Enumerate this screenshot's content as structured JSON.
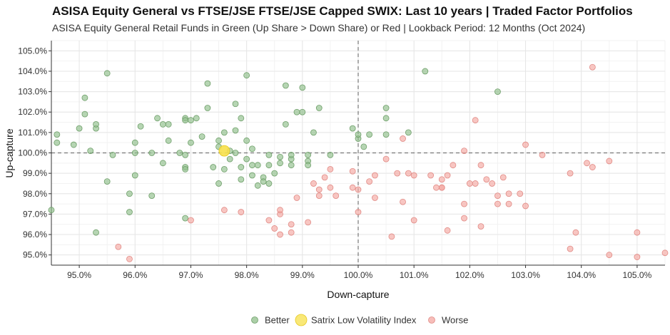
{
  "chart_data": {
    "type": "scatter",
    "title": "ASISA Equity General vs FTSE/JSE FTSE/JSE Capped SWIX: Last 10 years | Traded Factor Portfolios",
    "subtitle": "ASISA Equity General Retail Funds in Green (Up Share > Down Share) or Red | Lookback Period: 12 Months (Oct 2024)",
    "xlabel": "Down-capture",
    "ylabel": "Up-capture",
    "xlim": [
      94.5,
      105.5
    ],
    "ylim": [
      94.5,
      105.5
    ],
    "xticks": [
      "95.0%",
      "96.0%",
      "97.0%",
      "98.0%",
      "99.0%",
      "100.0%",
      "101.0%",
      "102.0%",
      "103.0%",
      "104.0%",
      "105.0%"
    ],
    "yticks": [
      "95.0%",
      "96.0%",
      "97.0%",
      "98.0%",
      "99.0%",
      "100.0%",
      "101.0%",
      "102.0%",
      "103.0%",
      "104.0%",
      "105.0%"
    ],
    "xtick_values": [
      95,
      96,
      97,
      98,
      99,
      100,
      101,
      102,
      103,
      104,
      105
    ],
    "ytick_values": [
      95,
      96,
      97,
      98,
      99,
      100,
      101,
      102,
      103,
      104,
      105
    ],
    "reference_lines": {
      "x": 100,
      "y": 100
    },
    "colors": {
      "better": "#8fbf8a",
      "worse": "#f4a7a2",
      "highlight": "#f7e04a",
      "better_edge": "#6e9e69",
      "worse_edge": "#e08a85",
      "highlight_edge": "#e6c820"
    },
    "legend": [
      "Better",
      "Satrix Low Volatility Index",
      "Worse"
    ],
    "series": [
      {
        "name": "Better",
        "points": [
          [
            94.5,
            97.2
          ],
          [
            94.6,
            100.5
          ],
          [
            94.6,
            100.9
          ],
          [
            94.9,
            100.4
          ],
          [
            95.0,
            101.2
          ],
          [
            95.1,
            102.7
          ],
          [
            95.1,
            101.9
          ],
          [
            95.2,
            100.1
          ],
          [
            95.3,
            101.2
          ],
          [
            95.3,
            101.4
          ],
          [
            95.3,
            96.1
          ],
          [
            95.5,
            98.6
          ],
          [
            95.5,
            103.9
          ],
          [
            95.6,
            99.9
          ],
          [
            95.9,
            98.0
          ],
          [
            95.9,
            97.1
          ],
          [
            96.0,
            100.0
          ],
          [
            96.0,
            98.9
          ],
          [
            96.0,
            100.5
          ],
          [
            96.1,
            101.3
          ],
          [
            96.3,
            97.9
          ],
          [
            96.3,
            100.0
          ],
          [
            96.4,
            101.7
          ],
          [
            96.5,
            99.5
          ],
          [
            96.5,
            101.4
          ],
          [
            96.6,
            101.4
          ],
          [
            96.6,
            100.6
          ],
          [
            96.8,
            100.0
          ],
          [
            96.9,
            99.9
          ],
          [
            96.9,
            101.7
          ],
          [
            96.9,
            101.6
          ],
          [
            96.9,
            99.3
          ],
          [
            96.9,
            96.8
          ],
          [
            96.9,
            99.2
          ],
          [
            97.0,
            101.6
          ],
          [
            97.0,
            100.5
          ],
          [
            97.1,
            101.7
          ],
          [
            97.2,
            100.8
          ],
          [
            97.3,
            102.2
          ],
          [
            97.3,
            103.4
          ],
          [
            97.4,
            99.3
          ],
          [
            97.5,
            100.6
          ],
          [
            97.5,
            100.3
          ],
          [
            97.5,
            98.5
          ],
          [
            97.6,
            101.0
          ],
          [
            97.6,
            99.2
          ],
          [
            97.7,
            100.1
          ],
          [
            97.7,
            99.7
          ],
          [
            97.8,
            102.4
          ],
          [
            97.8,
            101.1
          ],
          [
            97.8,
            100.0
          ],
          [
            97.9,
            98.7
          ],
          [
            97.9,
            99.3
          ],
          [
            97.9,
            101.7
          ],
          [
            98.0,
            103.8
          ],
          [
            98.0,
            99.7
          ],
          [
            98.0,
            100.6
          ],
          [
            98.1,
            100.2
          ],
          [
            98.1,
            98.9
          ],
          [
            98.1,
            99.4
          ],
          [
            98.2,
            98.4
          ],
          [
            98.2,
            99.4
          ],
          [
            98.3,
            98.8
          ],
          [
            98.3,
            98.6
          ],
          [
            98.4,
            99.9
          ],
          [
            98.4,
            99.4
          ],
          [
            98.4,
            98.5
          ],
          [
            98.5,
            99.0
          ],
          [
            98.6,
            99.5
          ],
          [
            98.6,
            99.8
          ],
          [
            98.7,
            101.4
          ],
          [
            98.7,
            103.3
          ],
          [
            98.8,
            99.7
          ],
          [
            98.8,
            99.4
          ],
          [
            98.8,
            99.9
          ],
          [
            98.9,
            102.0
          ],
          [
            99.0,
            102.0
          ],
          [
            99.0,
            103.2
          ],
          [
            99.1,
            99.9
          ],
          [
            99.1,
            99.6
          ],
          [
            99.1,
            99.4
          ],
          [
            99.2,
            101.0
          ],
          [
            99.3,
            102.2
          ],
          [
            99.5,
            99.9
          ],
          [
            99.9,
            101.2
          ],
          [
            100.0,
            100.7
          ],
          [
            100.0,
            100.9
          ],
          [
            100.1,
            100.3
          ],
          [
            100.2,
            100.9
          ],
          [
            100.5,
            101.7
          ],
          [
            100.5,
            102.2
          ],
          [
            100.5,
            100.9
          ],
          [
            100.9,
            101.0
          ],
          [
            101.2,
            104.0
          ],
          [
            102.5,
            103.0
          ]
        ]
      },
      {
        "name": "Satrix Low Volatility Index",
        "points": [
          [
            97.6,
            100.1
          ]
        ]
      },
      {
        "name": "Worse",
        "points": [
          [
            95.7,
            95.4
          ],
          [
            95.9,
            94.8
          ],
          [
            97.0,
            96.7
          ],
          [
            97.6,
            97.2
          ],
          [
            97.9,
            97.1
          ],
          [
            98.4,
            96.7
          ],
          [
            98.5,
            96.3
          ],
          [
            98.6,
            97.0
          ],
          [
            98.6,
            96.0
          ],
          [
            98.6,
            97.2
          ],
          [
            98.8,
            96.1
          ],
          [
            98.8,
            96.5
          ],
          [
            98.9,
            97.8
          ],
          [
            99.1,
            96.6
          ],
          [
            99.2,
            98.5
          ],
          [
            99.3,
            98.2
          ],
          [
            99.3,
            97.9
          ],
          [
            99.4,
            98.8
          ],
          [
            99.5,
            98.3
          ],
          [
            99.5,
            99.2
          ],
          [
            99.6,
            97.9
          ],
          [
            99.9,
            98.3
          ],
          [
            99.9,
            99.1
          ],
          [
            100.0,
            97.1
          ],
          [
            100.0,
            98.2
          ],
          [
            100.2,
            98.6
          ],
          [
            100.3,
            98.9
          ],
          [
            100.3,
            97.8
          ],
          [
            100.5,
            99.7
          ],
          [
            100.6,
            95.9
          ],
          [
            100.7,
            99.0
          ],
          [
            100.8,
            100.7
          ],
          [
            100.8,
            97.6
          ],
          [
            100.9,
            99.0
          ],
          [
            101.0,
            98.9
          ],
          [
            101.0,
            96.7
          ],
          [
            101.3,
            98.9
          ],
          [
            101.4,
            98.3
          ],
          [
            101.5,
            98.7
          ],
          [
            101.5,
            98.3
          ],
          [
            101.5,
            98.3
          ],
          [
            101.6,
            96.2
          ],
          [
            101.6,
            98.9
          ],
          [
            101.7,
            99.4
          ],
          [
            101.9,
            96.8
          ],
          [
            101.9,
            97.5
          ],
          [
            101.9,
            100.1
          ],
          [
            102.0,
            98.5
          ],
          [
            102.1,
            101.6
          ],
          [
            102.1,
            98.5
          ],
          [
            102.2,
            99.4
          ],
          [
            102.2,
            96.4
          ],
          [
            102.3,
            98.7
          ],
          [
            102.4,
            98.5
          ],
          [
            102.5,
            97.9
          ],
          [
            102.5,
            97.5
          ],
          [
            102.6,
            98.8
          ],
          [
            102.7,
            98.0
          ],
          [
            102.7,
            97.5
          ],
          [
            102.9,
            98.0
          ],
          [
            103.0,
            97.4
          ],
          [
            103.0,
            100.4
          ],
          [
            103.3,
            99.9
          ],
          [
            103.8,
            95.3
          ],
          [
            103.8,
            99.0
          ],
          [
            103.9,
            96.1
          ],
          [
            104.1,
            99.5
          ],
          [
            104.2,
            104.2
          ],
          [
            104.2,
            99.3
          ],
          [
            104.5,
            95.0
          ],
          [
            104.5,
            99.6
          ],
          [
            105.0,
            94.9
          ],
          [
            105.0,
            96.1
          ],
          [
            105.5,
            95.1
          ]
        ]
      }
    ]
  }
}
